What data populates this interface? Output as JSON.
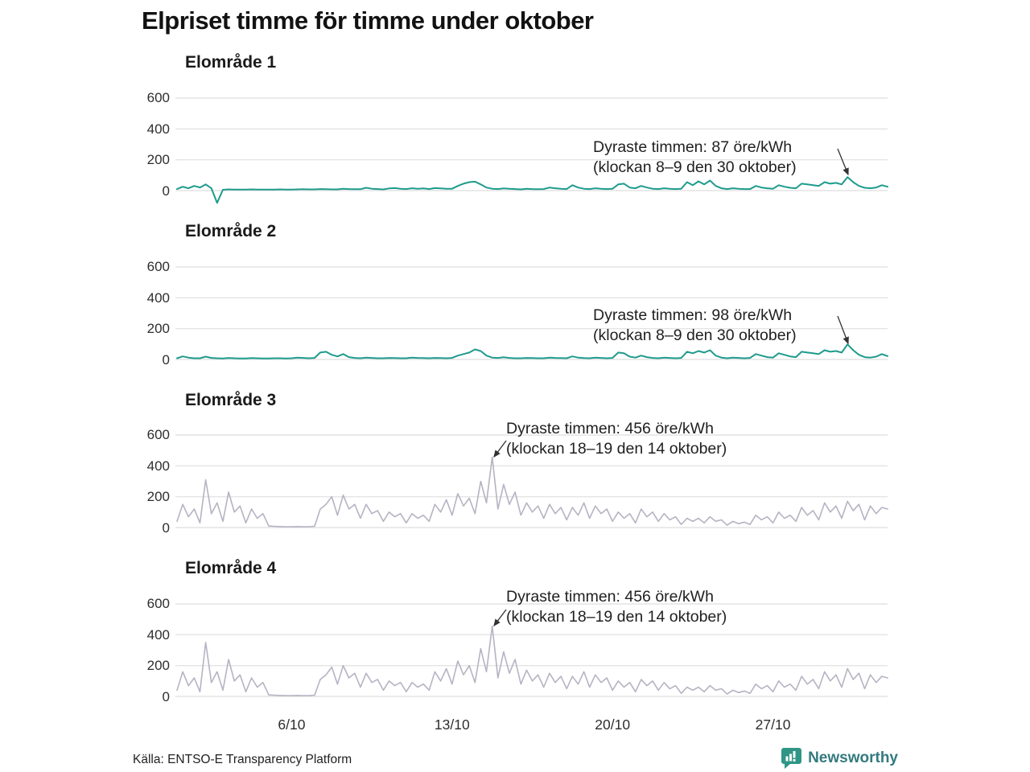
{
  "page_title": "Elpriset timme för timme under oktober",
  "source": "Källa: ENTSO-E Transparency Platform",
  "logo": {
    "text": "Newsworthy",
    "icon": "newsworthy-pin-barchart-icon",
    "icon_color": "#2f9686",
    "text_color": "#337a7f"
  },
  "colors": {
    "teal_line": "#1e9b8c",
    "gray_line": "#b4b4c3",
    "gridline": "#e4e4e4",
    "arrow": "#333333"
  },
  "axis": {
    "yticks": [
      "600",
      "400",
      "200",
      "0"
    ],
    "xticks": [
      "6/10",
      "13/10",
      "20/10",
      "27/10"
    ]
  },
  "chart_data": {
    "type": "line",
    "title": "Elpriset timme för timme under oktober",
    "unit": "öre/kWh",
    "x_description": "October, days 0–31, values sampled every 6 hours (4 points per day)",
    "points_per_day": 4,
    "x_start_day": 0,
    "x_end_day": 31,
    "ylim": [
      -100,
      650
    ],
    "yticks": [
      0,
      200,
      400,
      600
    ],
    "xtick_days": [
      5,
      12,
      19,
      26
    ],
    "xtick_labels": [
      "6/10",
      "13/10",
      "20/10",
      "27/10"
    ],
    "grid": "horizontal-only",
    "charts": [
      {
        "title": "Elområde 1",
        "color": "#1e9b8c",
        "stroke_width": 2,
        "annotation": {
          "line1": "Dyraste timmen: 87 öre/kWh",
          "line2": "(klockan 8–9 den 30 oktober)",
          "max_value": 87,
          "max_time": "klockan 8–9 den 30 oktober"
        },
        "values": [
          10,
          25,
          15,
          30,
          20,
          40,
          15,
          -80,
          5,
          8,
          6,
          7,
          6,
          8,
          7,
          6,
          6,
          7,
          8,
          7,
          7,
          8,
          9,
          8,
          8,
          10,
          9,
          8,
          8,
          12,
          10,
          9,
          9,
          18,
          12,
          10,
          8,
          14,
          16,
          12,
          10,
          15,
          12,
          14,
          10,
          16,
          14,
          12,
          12,
          30,
          45,
          55,
          58,
          40,
          20,
          12,
          10,
          14,
          12,
          10,
          8,
          12,
          10,
          9,
          10,
          20,
          15,
          12,
          10,
          35,
          20,
          12,
          10,
          15,
          12,
          10,
          12,
          40,
          45,
          20,
          15,
          30,
          20,
          12,
          10,
          15,
          12,
          10,
          12,
          55,
          35,
          60,
          40,
          65,
          30,
          15,
          10,
          15,
          12,
          10,
          10,
          30,
          20,
          15,
          12,
          35,
          25,
          18,
          15,
          45,
          40,
          35,
          30,
          55,
          45,
          50,
          40,
          87,
          55,
          30,
          18,
          15,
          20,
          35,
          25
        ]
      },
      {
        "title": "Elområde 2",
        "color": "#1e9b8c",
        "stroke_width": 2,
        "annotation": {
          "line1": "Dyraste timmen: 98 öre/kWh",
          "line2": "(klockan 8–9 den 30 oktober)",
          "max_value": 98,
          "max_time": "klockan 8–9 den 30 oktober"
        },
        "values": [
          8,
          20,
          12,
          8,
          8,
          18,
          10,
          8,
          7,
          10,
          8,
          7,
          7,
          9,
          8,
          7,
          7,
          8,
          8,
          7,
          8,
          12,
          10,
          8,
          10,
          45,
          50,
          30,
          20,
          35,
          15,
          10,
          8,
          12,
          10,
          8,
          8,
          10,
          9,
          8,
          8,
          12,
          10,
          9,
          8,
          10,
          9,
          8,
          10,
          25,
          35,
          45,
          65,
          55,
          25,
          12,
          10,
          14,
          10,
          8,
          8,
          10,
          9,
          8,
          8,
          12,
          10,
          9,
          8,
          20,
          12,
          9,
          8,
          12,
          10,
          8,
          10,
          45,
          40,
          18,
          12,
          25,
          15,
          10,
          8,
          12,
          10,
          8,
          10,
          50,
          40,
          55,
          45,
          60,
          25,
          12,
          8,
          12,
          10,
          8,
          10,
          35,
          25,
          15,
          12,
          40,
          30,
          20,
          15,
          50,
          45,
          40,
          35,
          60,
          50,
          55,
          45,
          98,
          60,
          30,
          15,
          12,
          18,
          35,
          22
        ]
      },
      {
        "title": "Elområde 3",
        "color": "#b4b4c3",
        "stroke_width": 1.6,
        "annotation": {
          "line1": "Dyraste timmen: 456 öre/kWh",
          "line2": "(klockan 18–19 den 14 oktober)",
          "max_value": 456,
          "max_time": "klockan 18–19 den 14 oktober"
        },
        "values": [
          40,
          150,
          70,
          120,
          30,
          310,
          90,
          160,
          40,
          230,
          100,
          140,
          30,
          120,
          60,
          90,
          10,
          8,
          6,
          5,
          5,
          6,
          5,
          5,
          8,
          120,
          150,
          200,
          80,
          210,
          120,
          150,
          60,
          150,
          90,
          110,
          40,
          100,
          70,
          90,
          30,
          90,
          60,
          80,
          40,
          150,
          100,
          180,
          80,
          220,
          140,
          190,
          90,
          300,
          160,
          456,
          120,
          280,
          150,
          230,
          80,
          160,
          100,
          140,
          60,
          150,
          90,
          130,
          50,
          130,
          80,
          160,
          60,
          140,
          90,
          120,
          40,
          100,
          60,
          90,
          30,
          120,
          70,
          100,
          40,
          90,
          50,
          70,
          20,
          60,
          40,
          60,
          30,
          70,
          40,
          50,
          15,
          40,
          25,
          35,
          20,
          80,
          50,
          70,
          30,
          100,
          60,
          80,
          40,
          130,
          80,
          110,
          50,
          160,
          100,
          140,
          60,
          170,
          110,
          150,
          50,
          140,
          90,
          130,
          120
        ]
      },
      {
        "title": "Elområde 4",
        "color": "#b4b4c3",
        "stroke_width": 1.6,
        "annotation": {
          "line1": "Dyraste timmen: 456 öre/kWh",
          "line2": "(klockan 18–19 den 14 oktober)",
          "max_value": 456,
          "max_time": "klockan 18–19 den 14 oktober"
        },
        "values": [
          40,
          160,
          70,
          120,
          30,
          350,
          90,
          160,
          40,
          240,
          100,
          140,
          30,
          120,
          60,
          90,
          10,
          8,
          6,
          5,
          5,
          6,
          5,
          5,
          8,
          110,
          140,
          190,
          80,
          200,
          120,
          150,
          60,
          150,
          90,
          110,
          40,
          100,
          70,
          90,
          30,
          90,
          60,
          80,
          40,
          160,
          100,
          180,
          80,
          230,
          140,
          200,
          90,
          310,
          160,
          456,
          120,
          290,
          150,
          240,
          80,
          170,
          100,
          140,
          60,
          150,
          90,
          130,
          50,
          130,
          80,
          160,
          60,
          140,
          90,
          120,
          40,
          100,
          60,
          90,
          30,
          110,
          70,
          100,
          40,
          90,
          50,
          70,
          20,
          60,
          40,
          60,
          30,
          70,
          40,
          50,
          15,
          40,
          25,
          35,
          20,
          80,
          50,
          70,
          30,
          100,
          60,
          80,
          40,
          130,
          80,
          110,
          50,
          160,
          100,
          140,
          60,
          180,
          110,
          150,
          50,
          140,
          90,
          130,
          120
        ]
      }
    ]
  }
}
